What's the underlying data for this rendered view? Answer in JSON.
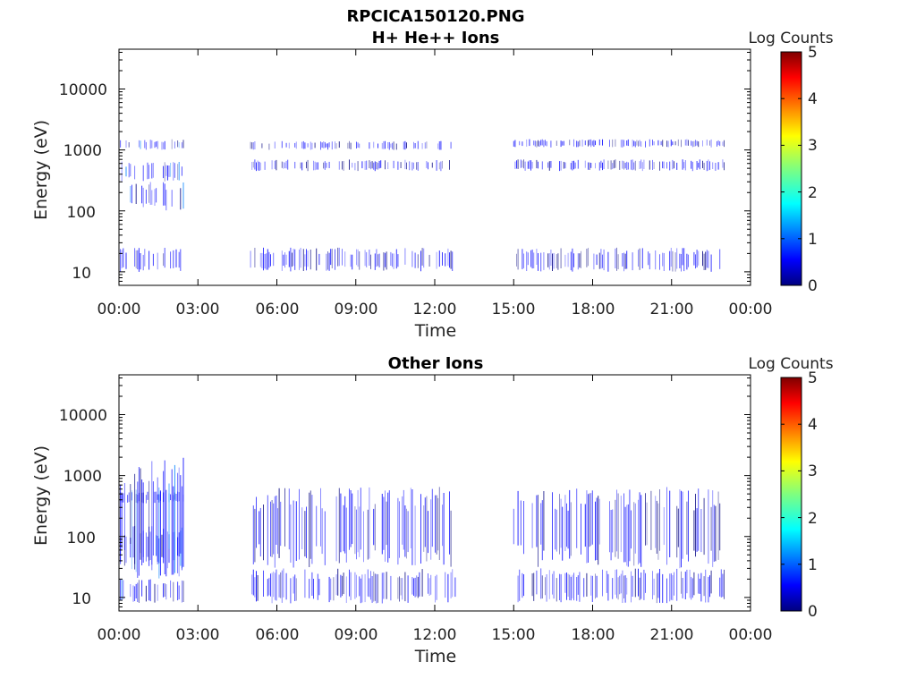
{
  "figure": {
    "title_line1": "RPCICA150120.PNG",
    "title_line2": "H+ He++ Ions"
  },
  "chart_data": [
    {
      "type": "heatmap",
      "title": "H+ He++ Ions",
      "xlabel": "Time",
      "ylabel": "Energy (eV)",
      "x_ticks": [
        "00:00",
        "03:00",
        "06:00",
        "09:00",
        "12:00",
        "15:00",
        "18:00",
        "21:00",
        "00:00"
      ],
      "y_ticks": [
        "10",
        "100",
        "1000",
        "10000"
      ],
      "y_scale": "log",
      "xlim_hours": [
        0,
        24
      ],
      "ylim_eV": [
        6,
        45000
      ],
      "colorbar": {
        "label": "Log Counts",
        "ticks": [
          "0",
          "1",
          "2",
          "3",
          "4",
          "5"
        ],
        "range": [
          0,
          5
        ]
      },
      "data_intervals": [
        {
          "start_h": 0.0,
          "end_h": 2.5,
          "bands_eV": [
            [
              1000,
              1500
            ],
            [
              300,
              650
            ],
            [
              100,
              300
            ],
            [
              10,
              25
            ]
          ],
          "log_counts": 0.6
        },
        {
          "start_h": 5.0,
          "end_h": 12.7,
          "bands_eV": [
            [
              1000,
              1400
            ],
            [
              450,
              700
            ],
            [
              10,
              25
            ]
          ],
          "log_counts": 0.5
        },
        {
          "start_h": 15.0,
          "end_h": 23.0,
          "bands_eV": [
            [
              1100,
              1500
            ],
            [
              450,
              700
            ],
            [
              10,
              25
            ]
          ],
          "log_counts": 0.5
        }
      ]
    },
    {
      "type": "heatmap",
      "title": "Other Ions",
      "xlabel": "Time",
      "ylabel": "Energy (eV)",
      "x_ticks": [
        "00:00",
        "03:00",
        "06:00",
        "09:00",
        "12:00",
        "15:00",
        "18:00",
        "21:00",
        "00:00"
      ],
      "y_ticks": [
        "10",
        "100",
        "1000",
        "10000"
      ],
      "y_scale": "log",
      "xlim_hours": [
        0,
        24
      ],
      "ylim_eV": [
        6,
        45000
      ],
      "colorbar": {
        "label": "Log Counts",
        "ticks": [
          "0",
          "1",
          "2",
          "3",
          "4",
          "5"
        ],
        "range": [
          0,
          5
        ]
      },
      "data_intervals": [
        {
          "start_h": 0.0,
          "end_h": 2.5,
          "bands_eV": [
            [
              350,
              550
            ],
            [
              30,
              150
            ],
            [
              8,
              20
            ],
            [
              20,
              2000
            ]
          ],
          "log_counts": 0.6
        },
        {
          "start_h": 5.0,
          "end_h": 12.8,
          "bands_eV": [
            [
              8,
              30
            ],
            [
              30,
              650
            ]
          ],
          "log_counts": 0.5
        },
        {
          "start_h": 15.0,
          "end_h": 23.0,
          "bands_eV": [
            [
              8,
              30
            ],
            [
              30,
              650
            ]
          ],
          "log_counts": 0.5
        }
      ]
    }
  ]
}
